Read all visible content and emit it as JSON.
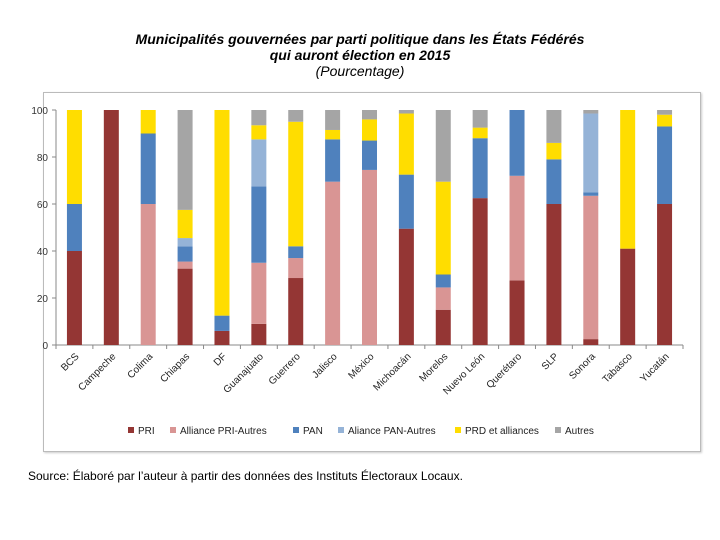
{
  "title": {
    "line1": "Municipalités gouvernées par parti politique dans les États Fédérés",
    "line2": "qui auront élection en 2015",
    "subtitle": "(Pourcentage)"
  },
  "source": "Source: Élaboré par l’auteur à partir des données des Instituts Électoraux Locaux.",
  "chart_data": {
    "type": "bar",
    "stacked": true,
    "categories": [
      "BCS",
      "Campeche",
      "Colima",
      "Chiapas",
      "DF",
      "Guanajuato",
      "Guerrero",
      "Jalisco",
      "México",
      "Michoacán",
      "Morelos",
      "Nuevo León",
      "Querétaro",
      "SLP",
      "Sonora",
      "Tabasco",
      "Yucatán"
    ],
    "ylim": [
      0,
      100
    ],
    "yticks": [
      0,
      20,
      40,
      60,
      80,
      100
    ],
    "grid": false,
    "legend": "bottom",
    "series": [
      {
        "name": "PRI",
        "color": "#943634",
        "values": [
          40,
          100,
          0,
          32.5,
          6,
          9,
          28.5,
          0,
          0,
          49.5,
          15,
          62.5,
          27.5,
          60,
          2.5,
          41,
          60
        ]
      },
      {
        "name": "Alliance PRI-Autres",
        "color": "#D99594",
        "values": [
          0,
          0,
          60,
          3,
          0,
          26,
          8.5,
          69.5,
          74.5,
          0,
          9.5,
          0,
          44.5,
          0,
          61,
          0,
          0
        ]
      },
      {
        "name": "PAN",
        "color": "#4F81BD",
        "values": [
          20,
          0,
          30,
          6.5,
          6.5,
          32.5,
          5,
          18,
          12.5,
          23,
          5.5,
          25.5,
          28,
          19,
          1.5,
          0,
          33
        ]
      },
      {
        "name": "Aliance PAN-Autres",
        "color": "#95B3D7",
        "values": [
          0,
          0,
          0,
          3.5,
          0,
          20,
          0,
          0,
          0,
          0,
          0,
          0,
          0,
          0,
          33.5,
          0,
          0
        ]
      },
      {
        "name": "PRD et alliances",
        "color": "#FFDD00",
        "values": [
          40,
          0,
          10,
          12,
          87.5,
          6,
          53,
          4,
          9,
          26,
          39.5,
          4.5,
          0,
          7,
          0,
          59,
          5
        ]
      },
      {
        "name": "Autres",
        "color": "#A5A5A5",
        "values": [
          0,
          0,
          0,
          42.5,
          0,
          6.5,
          5,
          8.5,
          4,
          1.5,
          30.5,
          7.5,
          0,
          14,
          1.5,
          0,
          2
        ]
      }
    ]
  }
}
